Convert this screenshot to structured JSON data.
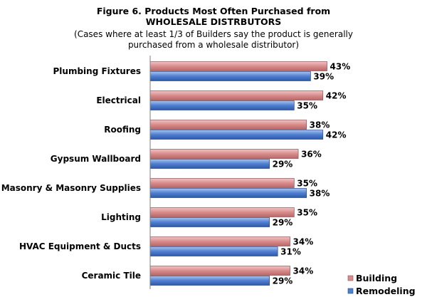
{
  "header": {
    "title_line1": "Figure 6.  Products Most Often Purchased from",
    "title_line2": "WHOLESALE DISTRBUTORS",
    "subtitle_line1": "(Cases where at least 1/3 of Builders say the product is generally",
    "subtitle_line2": "purchased from a wholesale distributor)"
  },
  "chart_data": {
    "type": "bar",
    "orientation": "horizontal",
    "title": "Figure 6.  Products Most Often Purchased from WHOLESALE DISTRBUTORS",
    "subtitle": "(Cases where at least 1/3 of Builders say the product is generally purchased from a wholesale distributor)",
    "categories": [
      "Plumbing Fixtures",
      "Electrical",
      "Roofing",
      "Gypsum Wallboard",
      "Masonry & Masonry Supplies",
      "Lighting",
      "HVAC Equipment & Ducts",
      "Ceramic Tile"
    ],
    "series": [
      {
        "name": "Building",
        "values": [
          43,
          42,
          38,
          36,
          35,
          35,
          34,
          34
        ],
        "labels": [
          "43%",
          "42%",
          "38%",
          "36%",
          "35%",
          "35%",
          "34%",
          "34%"
        ],
        "color": "#d98c8c"
      },
      {
        "name": "Remodeling",
        "values": [
          39,
          35,
          42,
          29,
          38,
          29,
          31,
          29
        ],
        "labels": [
          "39%",
          "35%",
          "42%",
          "29%",
          "38%",
          "29%",
          "31%",
          "29%"
        ],
        "color": "#4f7fd1"
      }
    ],
    "unit": "%",
    "xlim": [
      0,
      50
    ],
    "grid": false,
    "legend_position": "bottom-right"
  }
}
